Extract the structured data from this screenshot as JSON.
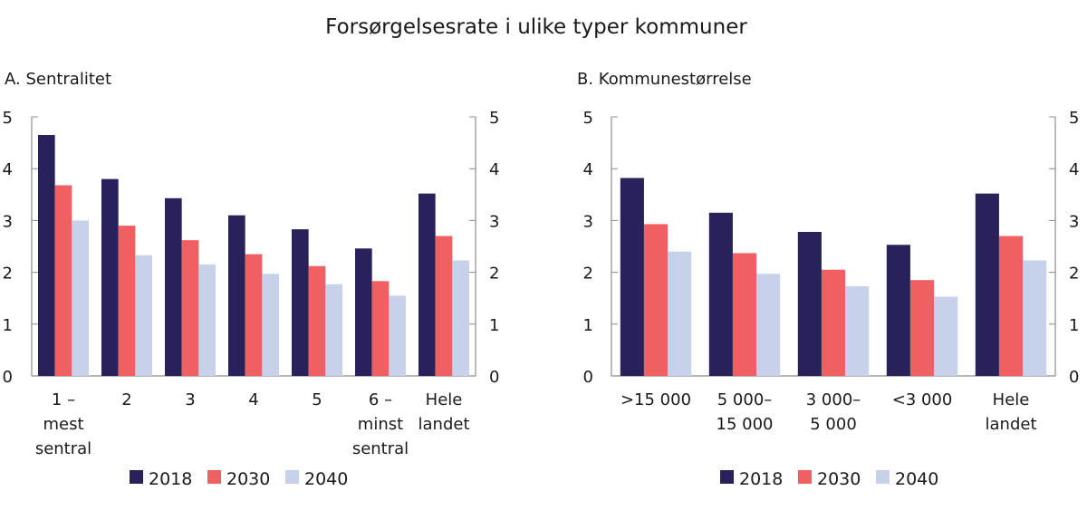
{
  "chart_data": {
    "title": "Forsørgelsesrate i ulike typer kommuner",
    "colors": {
      "2018": "#27235a",
      "2030": "#f06062",
      "2040": "#c7d2ea"
    },
    "panels": [
      {
        "id": "A",
        "title": "A.  Sentralitet",
        "type": "bar",
        "ylim": [
          0,
          5
        ],
        "yticks": [
          "0",
          "1",
          "2",
          "3",
          "4",
          "5"
        ],
        "categories": [
          [
            "1 –",
            "mest",
            "sentral"
          ],
          [
            "2"
          ],
          [
            "3"
          ],
          [
            "4"
          ],
          [
            "5"
          ],
          [
            "6 –",
            "minst",
            "sentral"
          ],
          [
            "Hele",
            "landet"
          ]
        ],
        "series": [
          {
            "name": "2018",
            "values": [
              4.65,
              3.8,
              3.43,
              3.1,
              2.83,
              2.46,
              3.52
            ]
          },
          {
            "name": "2030",
            "values": [
              3.68,
              2.9,
              2.62,
              2.35,
              2.12,
              1.83,
              2.7
            ]
          },
          {
            "name": "2040",
            "values": [
              3.0,
              2.33,
              2.15,
              1.97,
              1.77,
              1.55,
              2.23
            ]
          }
        ],
        "legend": [
          "2018",
          "2030",
          "2040"
        ],
        "legend_position": "bottom"
      },
      {
        "id": "B",
        "title": "B.  Kommunestørrelse",
        "type": "bar",
        "ylim": [
          0,
          5
        ],
        "yticks": [
          "0",
          "1",
          "2",
          "3",
          "4",
          "5"
        ],
        "categories": [
          [
            ">15 000"
          ],
          [
            "5 000–",
            "15 000"
          ],
          [
            "3 000–",
            "5 000"
          ],
          [
            "<3 000"
          ],
          [
            "Hele",
            "landet"
          ]
        ],
        "series": [
          {
            "name": "2018",
            "values": [
              3.82,
              3.15,
              2.78,
              2.53,
              3.52
            ]
          },
          {
            "name": "2030",
            "values": [
              2.93,
              2.37,
              2.05,
              1.85,
              2.7
            ]
          },
          {
            "name": "2040",
            "values": [
              2.4,
              1.97,
              1.73,
              1.53,
              2.23
            ]
          }
        ],
        "legend": [
          "2018",
          "2030",
          "2040"
        ],
        "legend_position": "bottom"
      }
    ]
  }
}
